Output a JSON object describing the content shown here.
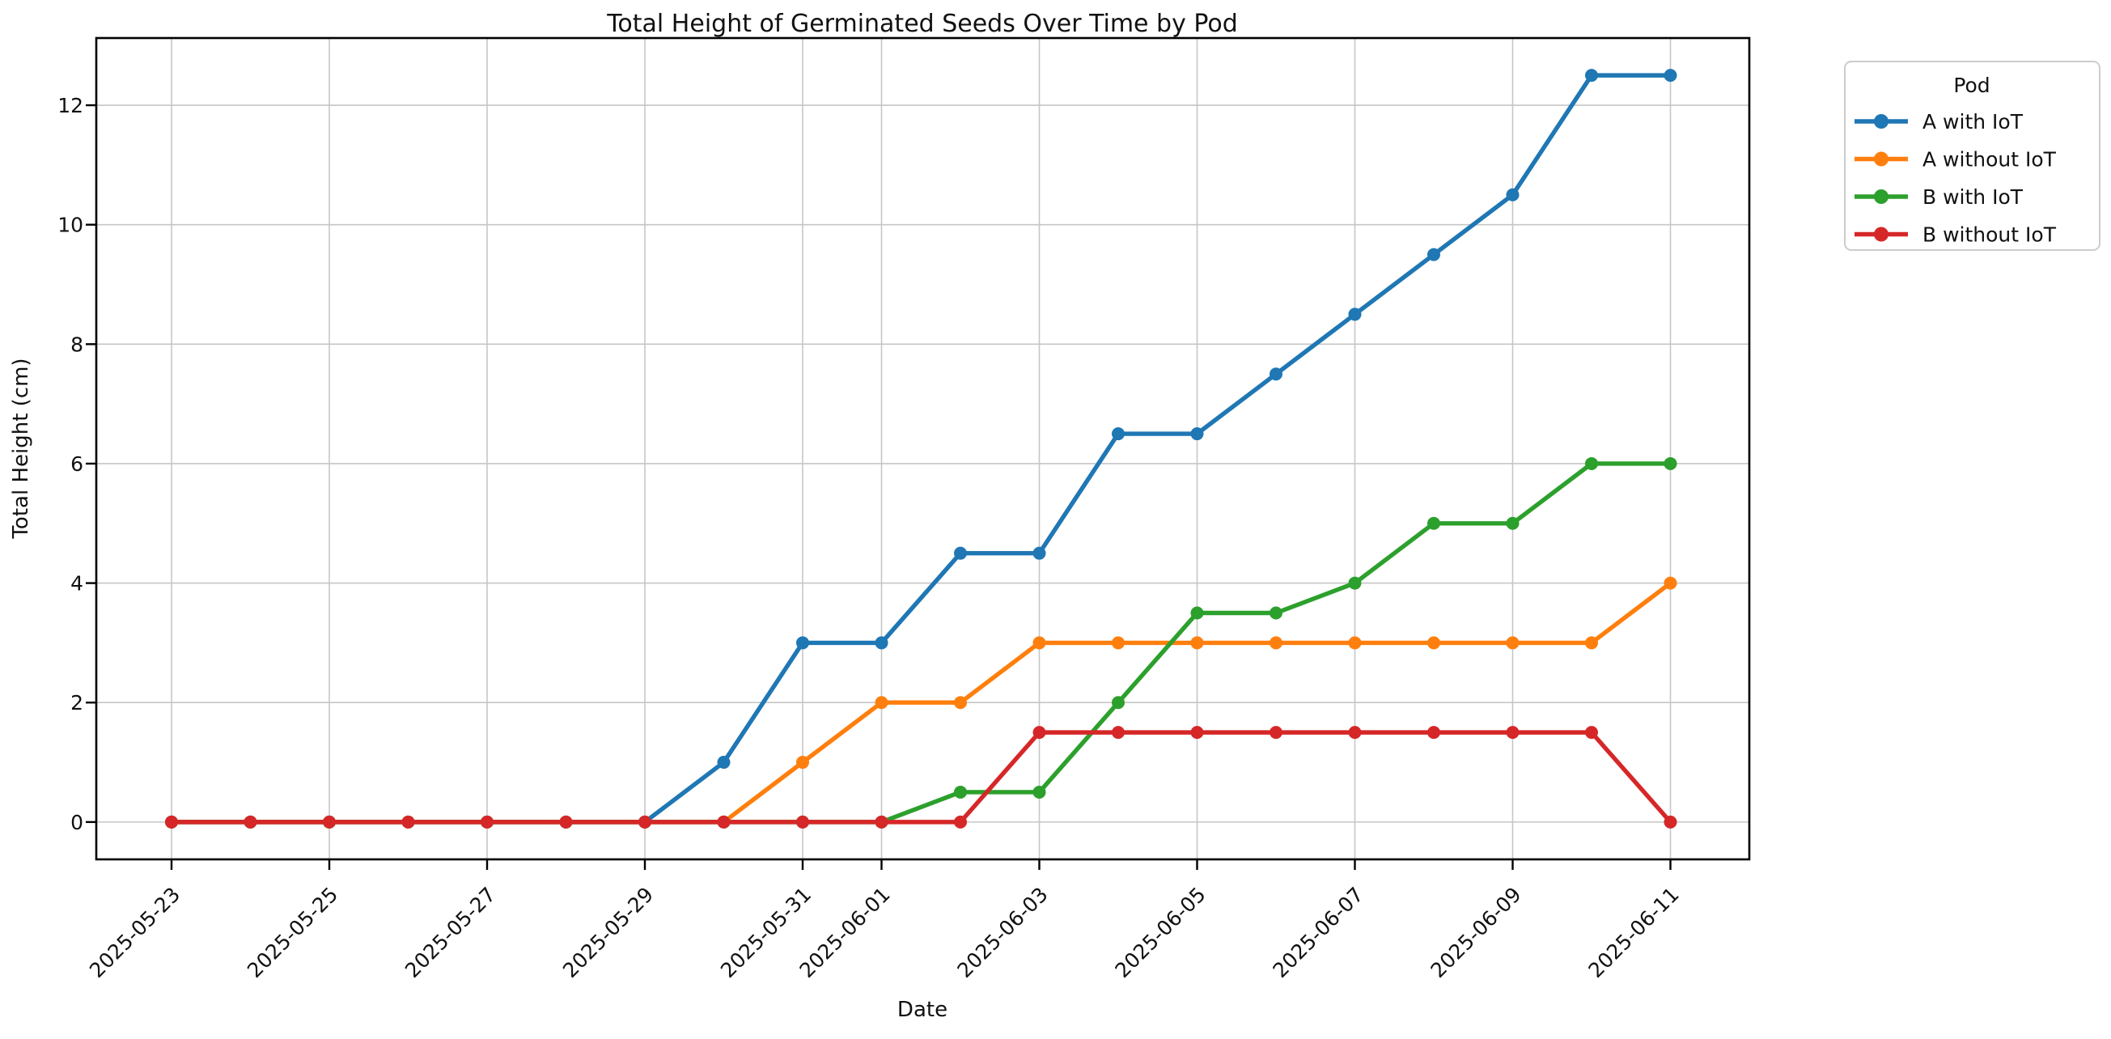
{
  "chart_data": {
    "type": "line",
    "title": "Total Height of Germinated Seeds Over Time by Pod",
    "xlabel": "Date",
    "ylabel": "Total Height (cm)",
    "grid": true,
    "x": [
      "2025-05-23",
      "2025-05-24",
      "2025-05-25",
      "2025-05-26",
      "2025-05-27",
      "2025-05-28",
      "2025-05-29",
      "2025-05-30",
      "2025-05-31",
      "2025-06-01",
      "2025-06-02",
      "2025-06-03",
      "2025-06-04",
      "2025-06-05",
      "2025-06-06",
      "2025-06-07",
      "2025-06-08",
      "2025-06-09",
      "2025-06-10",
      "2025-06-11"
    ],
    "x_tick_labels": [
      "2025-05-23",
      "2025-05-25",
      "2025-05-27",
      "2025-05-29",
      "2025-05-31",
      "2025-06-01",
      "2025-06-03",
      "2025-06-05",
      "2025-06-07",
      "2025-06-09",
      "2025-06-11"
    ],
    "x_tick_rotation": 45,
    "y_ticks": [
      0,
      2,
      4,
      6,
      8,
      10,
      12
    ],
    "ylim": [
      -0.625,
      13.125
    ],
    "legend": {
      "title": "Pod",
      "position": "outside upper right"
    },
    "series": [
      {
        "name": "A with IoT",
        "color": "#1f77b4",
        "values": [
          0,
          0,
          0,
          0,
          0,
          0,
          0,
          1,
          3,
          3,
          4.5,
          4.5,
          6.5,
          6.5,
          7.5,
          8.5,
          9.5,
          10.5,
          12.5,
          12.5
        ]
      },
      {
        "name": "A without IoT",
        "color": "#ff7f0e",
        "values": [
          0,
          0,
          0,
          0,
          0,
          0,
          0,
          0,
          1,
          2,
          2,
          3,
          3,
          3,
          3,
          3,
          3,
          3,
          3,
          4
        ]
      },
      {
        "name": "B with IoT",
        "color": "#2ca02c",
        "values": [
          0,
          0,
          0,
          0,
          0,
          0,
          0,
          0,
          0,
          0,
          0.5,
          0.5,
          2,
          3.5,
          3.5,
          4,
          5,
          5,
          6,
          6
        ]
      },
      {
        "name": "B without IoT",
        "color": "#d62728",
        "values": [
          0,
          0,
          0,
          0,
          0,
          0,
          0,
          0,
          0,
          0,
          0,
          1.5,
          1.5,
          1.5,
          1.5,
          1.5,
          1.5,
          1.5,
          1.5,
          0
        ]
      }
    ]
  }
}
